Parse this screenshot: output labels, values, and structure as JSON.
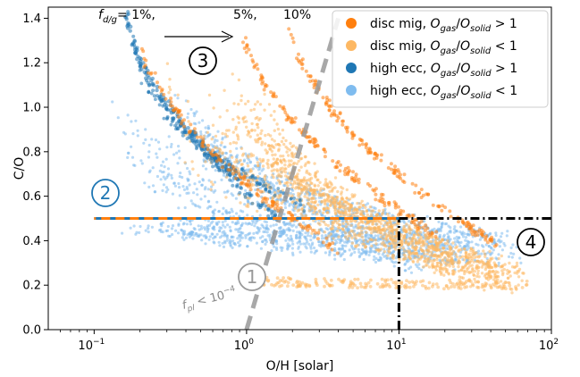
{
  "chart_data": {
    "type": "scatter",
    "xlabel": "O/H [solar]",
    "ylabel": "C/O",
    "xscale": "log",
    "xlim": [
      0.05,
      100
    ],
    "ylim": [
      0.0,
      1.45
    ],
    "x_ticks": [
      {
        "value": 0.1,
        "base": "10",
        "exp": "−1"
      },
      {
        "value": 1,
        "base": "10",
        "exp": "0"
      },
      {
        "value": 10,
        "base": "10",
        "exp": "1"
      },
      {
        "value": 100,
        "base": "10",
        "exp": "2"
      }
    ],
    "y_ticks": [
      "0.0",
      "0.2",
      "0.4",
      "0.6",
      "0.8",
      "1.0",
      "1.2",
      "1.4"
    ],
    "legend_position": "top-right",
    "series": [
      {
        "name": "disc mig, O_gas/O_solid > 1",
        "prefix": "disc mig, ",
        "var": "O",
        "sub1": "gas",
        "sub2": "solid",
        "op": " > 1",
        "color": "#ff7f0e"
      },
      {
        "name": "disc mig, O_gas/O_solid < 1",
        "prefix": "disc mig, ",
        "var": "O",
        "sub1": "gas",
        "sub2": "solid",
        "op": " < 1",
        "color": "#fdb863"
      },
      {
        "name": "high ecc, O_gas/O_solid > 1",
        "prefix": "high ecc, ",
        "var": "O",
        "sub1": "gas",
        "sub2": "solid",
        "op": " > 1",
        "color": "#1f77b4"
      },
      {
        "name": "high ecc, O_gas/O_solid < 1",
        "prefix": "high ecc, ",
        "var": "O",
        "sub1": "gas",
        "sub2": "solid",
        "op": " < 1",
        "color": "#7fbcef"
      }
    ],
    "annotations": {
      "fdg_labels": {
        "prefix": "f",
        "sub": "d/g",
        "v1": "= 1%,",
        "v2": "5%,",
        "v3": "10%"
      },
      "fpl_label": {
        "prefix": "f",
        "sub": "pl",
        "rest": " < 10",
        "sup": "−4"
      },
      "circled": [
        "1",
        "2",
        "3",
        "4"
      ]
    },
    "reference_lines": [
      {
        "style": "dashed",
        "color": "#999999",
        "points": [
          [
            1.0,
            0.0
          ],
          [
            4.0,
            1.4
          ]
        ]
      },
      {
        "style": "dash-dot",
        "color": "#000000",
        "points": [
          [
            10,
            0.0
          ],
          [
            10,
            0.5
          ]
        ]
      },
      {
        "style": "dash-dot",
        "color": "#000000",
        "points": [
          [
            10,
            0.5
          ],
          [
            100,
            0.5
          ]
        ]
      },
      {
        "style": "dashed",
        "color": "#1f77b4",
        "points": [
          [
            0.1,
            0.5
          ],
          [
            10,
            0.5
          ]
        ]
      },
      {
        "style": "dashed",
        "color": "#ff7f0e",
        "points": [
          [
            0.1,
            0.5
          ],
          [
            10,
            0.5
          ]
        ]
      }
    ]
  }
}
